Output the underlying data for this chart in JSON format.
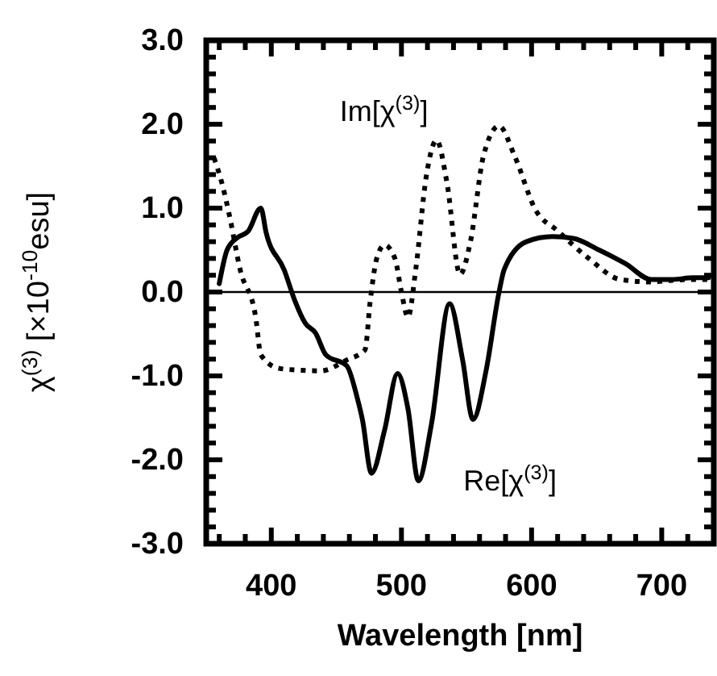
{
  "chart_data": {
    "type": "line",
    "xlabel": "Wavelength [nm]",
    "ylabel": "χ$^{(3)}$ [×10$^{-10}$esu]",
    "xlim": [
      350,
      740
    ],
    "xticks": [
      {
        "value": 360,
        "label": null
      },
      {
        "value": 380,
        "label": null
      },
      400,
      {
        "value": 420,
        "label": null
      },
      {
        "value": 440,
        "label": null
      },
      {
        "value": 460,
        "label": null
      },
      {
        "value": 480,
        "label": null
      },
      500,
      {
        "value": 520,
        "label": null
      },
      {
        "value": 540,
        "label": null
      },
      {
        "value": 560,
        "label": null
      },
      {
        "value": 580,
        "label": null
      },
      600,
      {
        "value": 620,
        "label": null
      },
      {
        "value": 640,
        "label": null
      },
      {
        "value": 660,
        "label": null
      },
      {
        "value": 680,
        "label": null
      },
      700,
      {
        "value": 720,
        "label": null
      }
    ],
    "ylim": [
      -3,
      3
    ],
    "yticks": [
      {
        "value": -3,
        "label": "-3.0"
      },
      {
        "value": -2.8,
        "label": null
      },
      {
        "value": -2.6,
        "label": null
      },
      {
        "value": -2.4,
        "label": null
      },
      {
        "value": -2.2,
        "label": null
      },
      {
        "value": -2,
        "label": "-2.0"
      },
      {
        "value": -1.8,
        "label": null
      },
      {
        "value": -1.6,
        "label": null
      },
      {
        "value": -1.4,
        "label": null
      },
      {
        "value": -1.2,
        "label": null
      },
      {
        "value": -1,
        "label": "-1.0"
      },
      {
        "value": -0.8,
        "label": null
      },
      {
        "value": -0.6,
        "label": null
      },
      {
        "value": -0.4,
        "label": null
      },
      {
        "value": -0.2,
        "label": null
      },
      {
        "value": 0,
        "label": "0.0"
      },
      {
        "value": 0.2,
        "label": null
      },
      {
        "value": 0.4,
        "label": null
      },
      {
        "value": 0.6,
        "label": null
      },
      {
        "value": 0.8,
        "label": null
      },
      {
        "value": 1,
        "label": "1.0"
      },
      {
        "value": 1.2,
        "label": null
      },
      {
        "value": 1.4,
        "label": null
      },
      {
        "value": 1.6,
        "label": null
      },
      {
        "value": 1.8,
        "label": null
      },
      {
        "value": 2,
        "label": "2.0"
      },
      {
        "value": 2.2,
        "label": null
      },
      {
        "value": 2.4,
        "label": null
      },
      {
        "value": 2.6,
        "label": null
      },
      {
        "value": 2.8,
        "label": null
      },
      {
        "value": 3,
        "label": "3.0"
      }
    ],
    "ref_lines": [
      {
        "axis": "y",
        "value": 0,
        "color": "#000000"
      }
    ],
    "grid": false,
    "series": [
      {
        "name": "Im[χ$^{(3)}$]",
        "color": "#000000",
        "line_style": "dotted",
        "x": [
          356,
          362,
          368,
          376,
          388,
          392,
          406,
          420,
          438,
          458,
          472,
          476,
          481,
          487,
          495,
          500,
          505,
          511,
          519,
          527,
          535,
          545,
          553,
          563,
          575,
          587,
          603,
          620,
          644,
          668,
          692,
          708,
          724,
          736
        ],
        "values": [
          1.6,
          1.3,
          0.9,
          0.27,
          -0.3,
          -0.75,
          -0.91,
          -0.93,
          -0.94,
          -0.81,
          -0.69,
          -0.11,
          0.4,
          0.56,
          0.4,
          0.0,
          -0.3,
          0.27,
          1.37,
          1.81,
          1.3,
          0.21,
          0.6,
          1.62,
          1.98,
          1.62,
          0.98,
          0.73,
          0.4,
          0.15,
          0.12,
          0.14,
          0.15,
          0.15
        ]
      },
      {
        "name": "Re[χ$^{(3)}$]",
        "color": "#000000",
        "line_style": "solid",
        "x": [
          360,
          366,
          374,
          382,
          392,
          396,
          410,
          418,
          426,
          434,
          442,
          458,
          466,
          470,
          477,
          487,
          497,
          505,
          513,
          523,
          537,
          547,
          555,
          565,
          575,
          579,
          596,
          616,
          632,
          652,
          672,
          692,
          708,
          724,
          736
        ],
        "values": [
          0.1,
          0.5,
          0.65,
          0.72,
          1.0,
          0.71,
          0.26,
          -0.1,
          -0.37,
          -0.49,
          -0.75,
          -0.88,
          -1.26,
          -1.52,
          -2.16,
          -1.65,
          -0.97,
          -1.39,
          -2.25,
          -1.58,
          -0.14,
          -0.81,
          -1.52,
          -0.94,
          0.0,
          0.27,
          0.6,
          0.66,
          0.64,
          0.5,
          0.34,
          0.15,
          0.15,
          0.17,
          0.17
        ]
      }
    ]
  }
}
